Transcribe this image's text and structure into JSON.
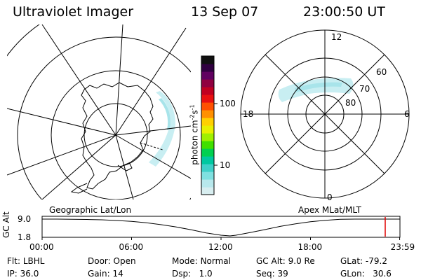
{
  "header": {
    "instrument": "Ultraviolet Imager",
    "date": "13 Sep 07",
    "time": "23:00:50 UT"
  },
  "geo_map": {
    "label": "Geographic Lat/Lon"
  },
  "mlt_map": {
    "label": "Apex MLat/MLT",
    "mlt_labels": [
      "12",
      "18",
      "6",
      "0"
    ],
    "mlat_labels": [
      "60",
      "70",
      "80"
    ]
  },
  "colorbar": {
    "unit": "photon cm",
    "unit_exp1": "-2",
    "unit_mid": "s",
    "unit_exp2": "-1",
    "scale": "log",
    "tick_labels": [
      "100",
      "10"
    ],
    "tick_values": [
      100,
      10
    ],
    "range": [
      2,
      450
    ],
    "colors": [
      "#d8eef0",
      "#b8e8ec",
      "#7fe0e0",
      "#3fd0c8",
      "#00c8a0",
      "#00d050",
      "#40e000",
      "#a0f000",
      "#e8f000",
      "#ffd000",
      "#ff9000",
      "#ff5000",
      "#e81010",
      "#c00020",
      "#900040",
      "#600060",
      "#300040",
      "#101010"
    ]
  },
  "chart_data": {
    "type": "line",
    "title": "",
    "ylabel": "GC Alt",
    "y_ticks": [
      "9.0",
      "1.8"
    ],
    "ylim": [
      1.8,
      9.0
    ],
    "x_ticks": [
      "00:00",
      "06:00",
      "12:00",
      "18:00",
      "23:59"
    ],
    "xlim": [
      0,
      24
    ],
    "series": [
      {
        "x": [
          0,
          1,
          2,
          3,
          4,
          5,
          6,
          7,
          8,
          9,
          10,
          11,
          12,
          12.6,
          13,
          14,
          15,
          16,
          17,
          18,
          19,
          20,
          21,
          22,
          23,
          23.98
        ],
        "y": [
          9.0,
          9.0,
          8.95,
          8.85,
          8.7,
          8.4,
          8.0,
          7.4,
          6.6,
          5.6,
          4.4,
          3.1,
          2.1,
          1.8,
          2.1,
          3.3,
          4.6,
          5.9,
          7.0,
          7.9,
          8.5,
          8.9,
          9.0,
          9.0,
          9.0,
          9.0
        ]
      }
    ],
    "marker_time": 23.01
  },
  "status": {
    "flt_label": "Flt:",
    "flt_value": "LBHL",
    "ip_label": "IP:",
    "ip_value": "36.0",
    "door_label": "Door:",
    "door_value": "Open",
    "gain_label": "Gain:",
    "gain_value": "14",
    "mode_label": "Mode:",
    "mode_value": "Normal",
    "dsp_label": "Dsp:",
    "dsp_value": "1.0",
    "gcalt_label": "GC Alt:",
    "gcalt_value": "9.0 Re",
    "seq_label": "Seq:",
    "seq_value": "39",
    "glat_label": "GLat:",
    "glat_value": "-79.2",
    "glon_label": "GLon:",
    "glon_value": "30.6"
  }
}
